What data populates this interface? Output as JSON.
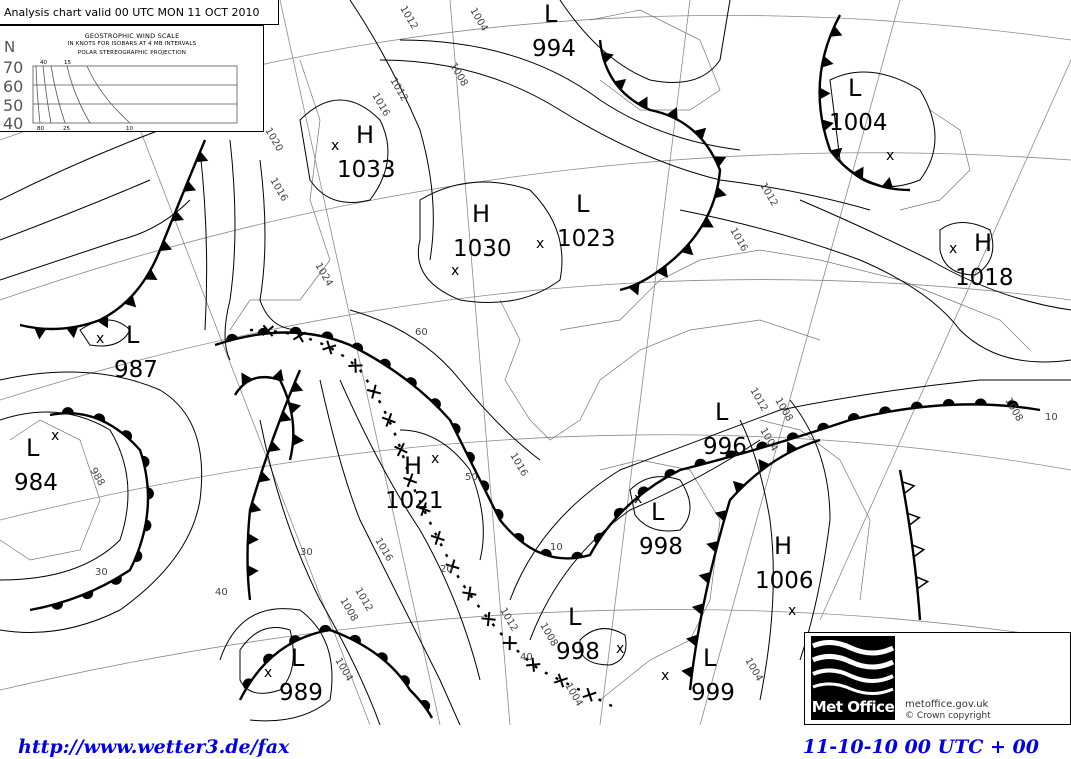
{
  "chart_title": "Analysis chart valid 00 UTC MON 11 OCT 2010",
  "wind_scale": {
    "heading": "GEOSTROPHIC WIND SCALE",
    "subheading": "IN KNOTS FOR ISOBARS AT  4 MB INTERVALS",
    "projection": "POLAR STEREOGRAPHIC PROJECTION",
    "lat_axis_title": "N",
    "lat_labels": [
      "70",
      "60",
      "50",
      "40"
    ],
    "top_labels": [
      "40",
      "15"
    ],
    "bottom_labels": [
      "80",
      "25",
      "10"
    ]
  },
  "pressure_centers": [
    {
      "type": "L",
      "value": "994"
    },
    {
      "type": "L",
      "value": "1004"
    },
    {
      "type": "H",
      "value": "1033"
    },
    {
      "type": "H",
      "value": "1030"
    },
    {
      "type": "L",
      "value": "1023"
    },
    {
      "type": "H",
      "value": "1018"
    },
    {
      "type": "L",
      "value": "987"
    },
    {
      "type": "L",
      "value": "984"
    },
    {
      "type": "H",
      "value": "1021"
    },
    {
      "type": "L",
      "value": "996"
    },
    {
      "type": "L",
      "value": "998"
    },
    {
      "type": "H",
      "value": "1006"
    },
    {
      "type": "L",
      "value": "998"
    },
    {
      "type": "L",
      "value": "999"
    },
    {
      "type": "L",
      "value": "989"
    }
  ],
  "isobar_labels": [
    "1008",
    "1012",
    "1016",
    "1016",
    "1020",
    "1024",
    "1012",
    "1016",
    "1008",
    "1004",
    "1016",
    "1012",
    "1008",
    "1004",
    "988",
    "1004",
    "1008",
    "1012",
    "1016",
    "1012",
    "1008",
    "1004",
    "1004",
    "1012"
  ],
  "graticule_labels": [
    "60",
    "50",
    "40",
    "30",
    "20",
    "10",
    "10",
    "40",
    "30"
  ],
  "logo": {
    "name": "Met Office",
    "url": "metoffice.gov.uk",
    "copyright": "©  Crown copyright"
  },
  "footer": {
    "source_url": "http://www.wetter3.de/fax",
    "valid_time": "11-10-10 00 UTC + 00"
  },
  "colors": {
    "footer_text": "#0000e6",
    "map_lines": "#000000",
    "graticule": "#8a8a8a"
  }
}
